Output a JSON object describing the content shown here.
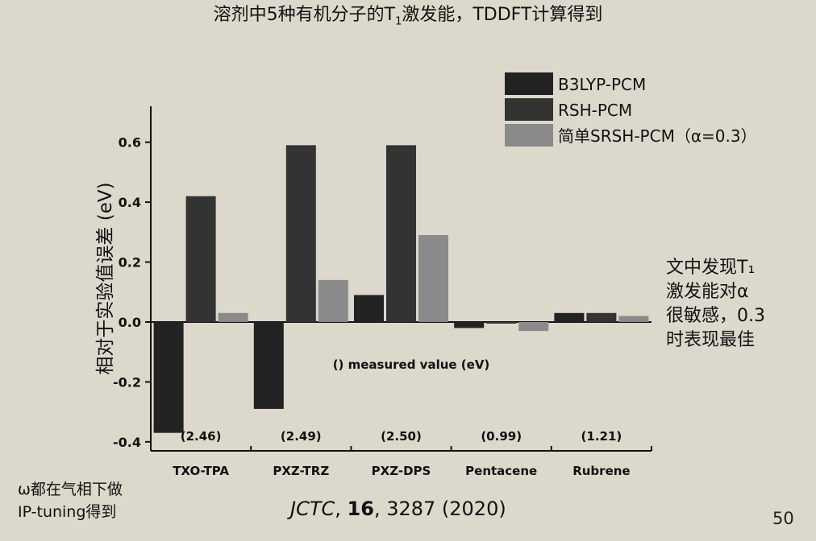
{
  "title": {
    "prefix": "溶剂中5种有机分子的T",
    "sub": "1",
    "suffix": "激发能，TDDFT计算得到"
  },
  "chart_data": {
    "type": "bar",
    "ylabel": "相对于实验值误差 (eV)",
    "ylim": [
      -0.4,
      0.7
    ],
    "yticks": [
      -0.4,
      -0.2,
      0.0,
      0.2,
      0.4,
      0.6
    ],
    "ytick_labels": [
      "-0.4",
      "-0.2",
      "0.0",
      "0.2",
      "0.4",
      "0.6"
    ],
    "categories": [
      "TXO-TPA",
      "PXZ-TRZ",
      "PXZ-DPS",
      "Pentacene",
      "Rubrene"
    ],
    "measured_values": [
      "(2.46)",
      "(2.49)",
      "(2.50)",
      "(0.99)",
      "(1.21)"
    ],
    "annotation": "() measured value (eV)",
    "legend_position": "top-right",
    "series": [
      {
        "name": "B3LYP-PCM",
        "color": "#222222",
        "values": [
          -0.37,
          -0.29,
          0.09,
          -0.02,
          0.03
        ]
      },
      {
        "name": "RSH-PCM",
        "color": "#333333",
        "values": [
          0.42,
          0.59,
          0.59,
          0.0,
          0.03
        ]
      },
      {
        "name": "简单SRSH-PCM（α=0.3）",
        "color": "#8a8a8a",
        "values": [
          0.03,
          0.14,
          0.29,
          -0.03,
          0.02
        ]
      }
    ]
  },
  "note_right": [
    "文中发现T₁",
    "激发能对α",
    "很敏感，0.3",
    "时表现最佳"
  ],
  "note_left": [
    "ω都在气相下做",
    "IP-tuning得到"
  ],
  "citation": {
    "journal": "JCTC",
    "volume": "16",
    "rest": ", 3287 (2020)"
  },
  "page_number": "50"
}
